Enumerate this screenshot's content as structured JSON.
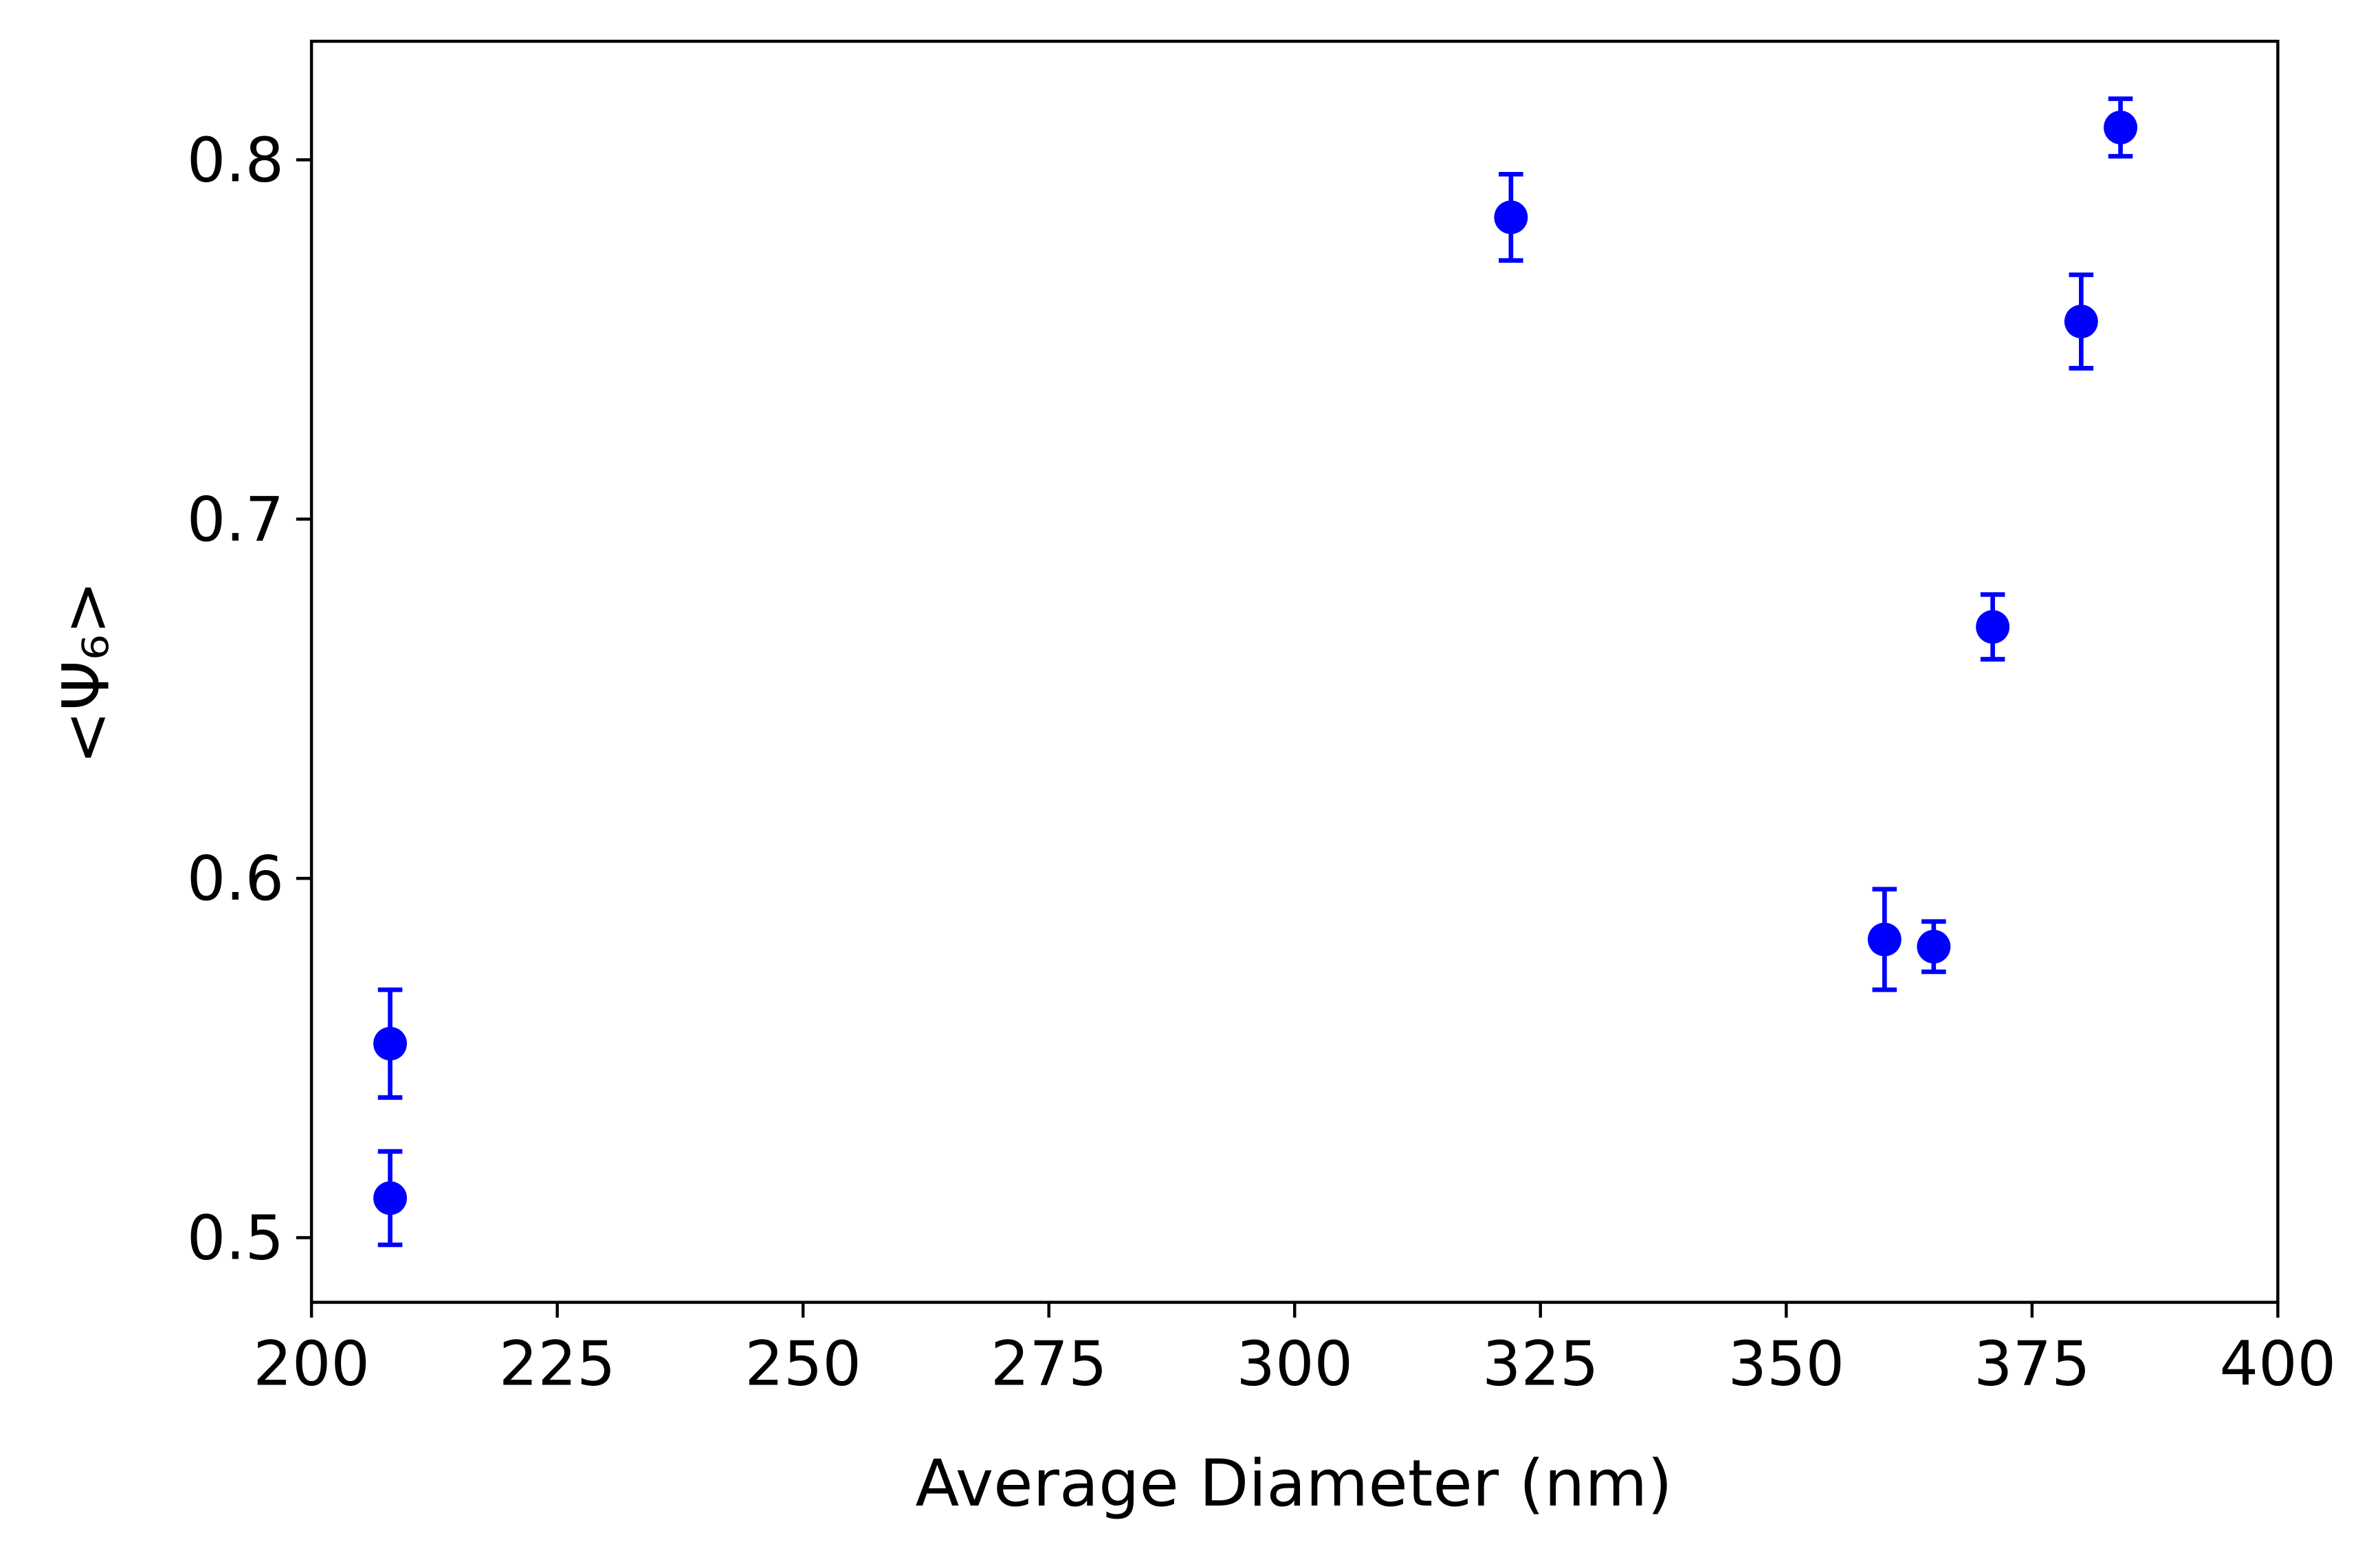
{
  "chart_data": {
    "type": "scatter",
    "xlabel": "Average Diameter (nm)",
    "ylabel": "<Ψ₆>",
    "series": [
      {
        "color": "#0000ff",
        "x": [
          208,
          208,
          322,
          360,
          365,
          371,
          380,
          384
        ],
        "values": [
          0.554,
          0.511,
          0.784,
          0.583,
          0.581,
          0.67,
          0.755,
          0.809
        ],
        "yerr": [
          0.015,
          0.013,
          0.012,
          0.014,
          0.007,
          0.009,
          0.013,
          0.008
        ]
      }
    ],
    "xlim": [
      200,
      400
    ],
    "xticks": [
      200,
      225,
      250,
      275,
      300,
      325,
      350,
      375,
      400
    ],
    "ylim": [
      0.482,
      0.833
    ],
    "yticks": [
      0.5,
      0.6,
      0.7,
      0.8
    ]
  }
}
